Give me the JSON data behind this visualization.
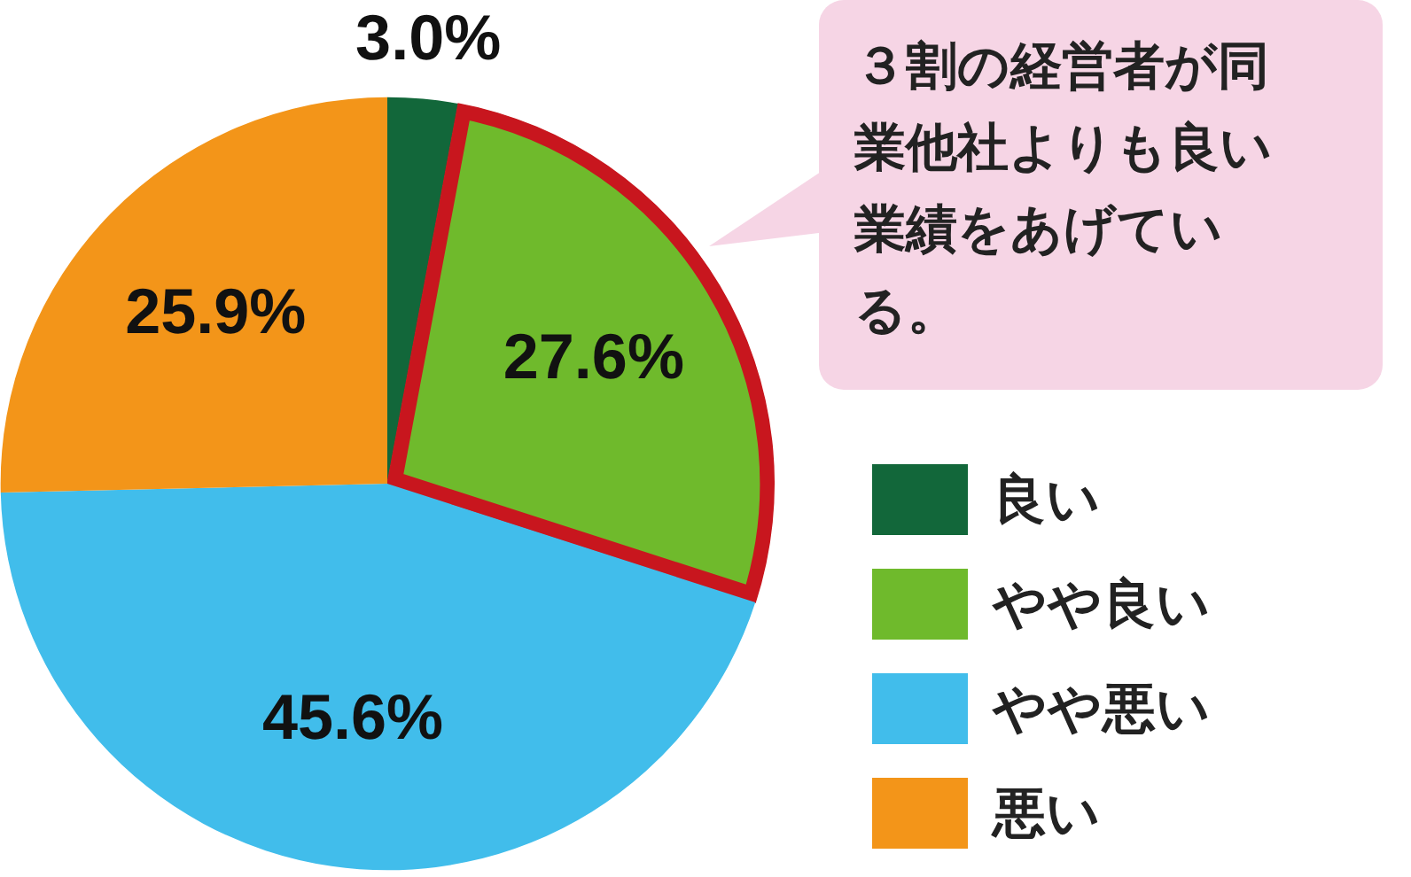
{
  "chart_data": {
    "type": "pie",
    "categories": [
      "良い",
      "やや良い",
      "やや悪い",
      "悪い"
    ],
    "values": [
      3.0,
      27.6,
      45.6,
      25.9
    ],
    "colors": [
      "#12673a",
      "#6fba2c",
      "#41bdeb",
      "#f39519"
    ],
    "value_labels": [
      "3.0%",
      "27.6%",
      "45.6%",
      "25.9%"
    ],
    "legend": "right",
    "annotations": [
      {
        "text": "３割の経営者が同業他社よりも良い業績をあげている。",
        "x": "やや良い"
      }
    ]
  }
}
